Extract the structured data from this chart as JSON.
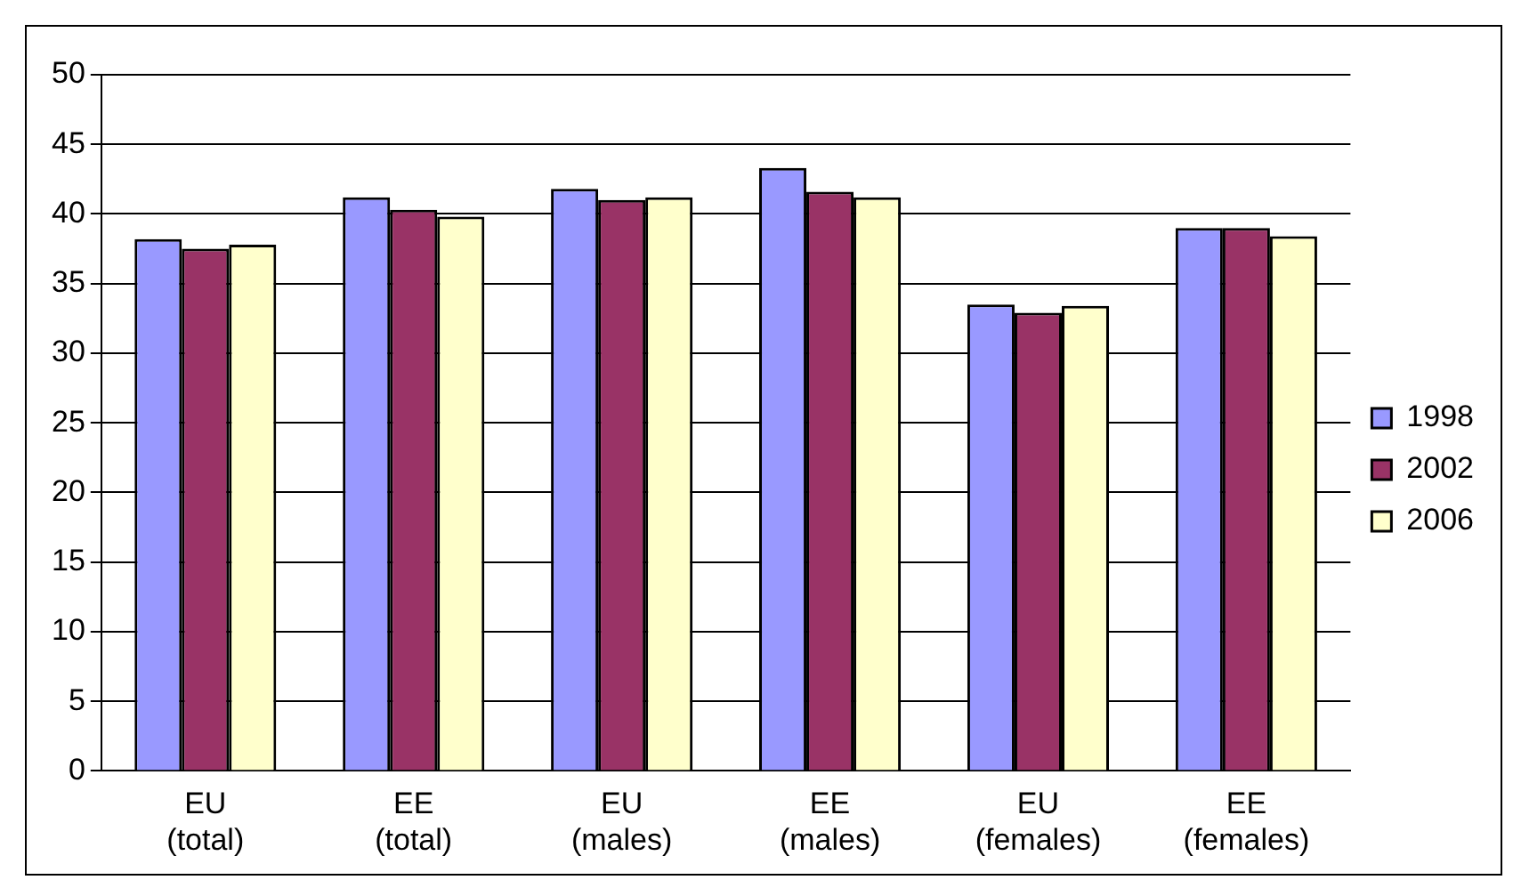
{
  "chart_data": {
    "type": "bar",
    "categories": [
      "EU (total)",
      "EE (total)",
      "EU (males)",
      "EE (males)",
      "EU (females)",
      "EE (females)"
    ],
    "series": [
      {
        "name": "1998",
        "color": "#9999ff",
        "values": [
          38.2,
          41.2,
          41.8,
          43.3,
          33.5,
          39.0
        ]
      },
      {
        "name": "2002",
        "color": "#993366",
        "values": [
          37.5,
          40.3,
          41.0,
          41.6,
          32.9,
          39.0
        ]
      },
      {
        "name": "2006",
        "color": "#ffffcc",
        "values": [
          37.8,
          39.8,
          41.2,
          41.2,
          33.4,
          38.4
        ]
      }
    ],
    "ylim": [
      0,
      50
    ],
    "yticks": [
      0,
      5,
      10,
      15,
      20,
      25,
      30,
      35,
      40,
      45,
      50
    ],
    "grid": "y",
    "legend": "right"
  }
}
